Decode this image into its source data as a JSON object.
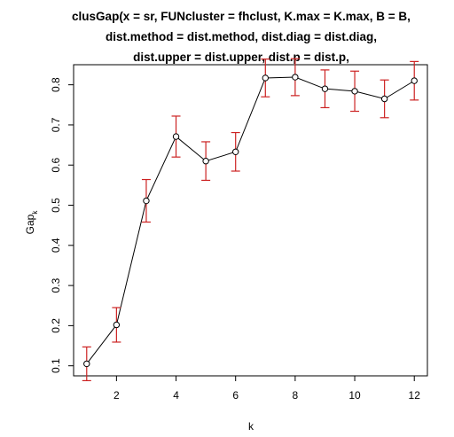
{
  "chart_data": {
    "type": "line",
    "title_lines": [
      "clusGap(x = sr, FUNcluster = fhclust, K.max = K.max, B = B,",
      "dist.method = dist.method, dist.diag = dist.diag,",
      "dist.upper = dist.upper, dist.p = dist.p,"
    ],
    "xlabel": "k",
    "ylabel": "Gap",
    "ylabel_subscript": "k",
    "xlim": [
      0.56,
      12.44
    ],
    "ylim": [
      0.075,
      0.85
    ],
    "x_ticks": [
      2,
      4,
      6,
      8,
      10,
      12
    ],
    "y_ticks": [
      0.1,
      0.2,
      0.3,
      0.4,
      0.5,
      0.6,
      0.7,
      0.8
    ],
    "x_tick_labels": [
      "2",
      "4",
      "6",
      "8",
      "10",
      "12"
    ],
    "y_tick_labels": [
      "0.1",
      "0.2",
      "0.3",
      "0.4",
      "0.5",
      "0.6",
      "0.7",
      "0.8"
    ],
    "grid": false,
    "line_color": "#000000",
    "errorbar_color": "#cc2222",
    "series": [
      {
        "x": [
          1,
          2,
          3,
          4,
          5,
          6,
          7,
          8,
          9,
          10,
          11,
          12
        ],
        "y": [
          0.105,
          0.202,
          0.511,
          0.671,
          0.61,
          0.633,
          0.817,
          0.819,
          0.79,
          0.784,
          0.765,
          0.81
        ],
        "se": [
          0.042,
          0.043,
          0.053,
          0.051,
          0.048,
          0.048,
          0.047,
          0.046,
          0.047,
          0.05,
          0.047,
          0.048
        ]
      }
    ]
  }
}
